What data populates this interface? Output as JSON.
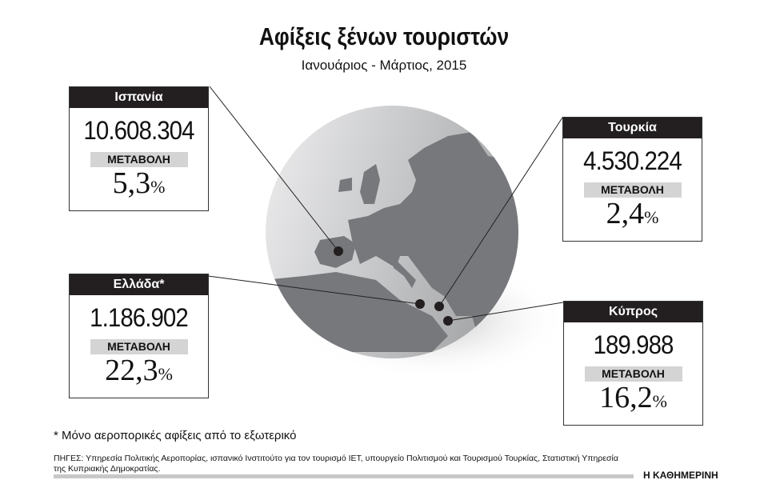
{
  "title": "Αφίξεις ξένων τουριστών",
  "subtitle": "Ιανουάριος - Μάρτιος, 2015",
  "countries": [
    {
      "name": "Ισπανία",
      "arrivals": "10.608.304",
      "change_label": "ΜΕΤΑΒΟΛΗ",
      "change": "5,3",
      "unit": "%"
    },
    {
      "name": "Τουρκία",
      "arrivals": "4.530.224",
      "change_label": "ΜΕΤΑΒΟΛΗ",
      "change": "2,4",
      "unit": "%"
    },
    {
      "name": "Ελλάδα*",
      "arrivals": "1.186.902",
      "change_label": "ΜΕΤΑΒΟΛΗ",
      "change": "22,3",
      "unit": "%"
    },
    {
      "name": "Κύπρος",
      "arrivals": "189.988",
      "change_label": "ΜΕΤΑΒΟΛΗ",
      "change": "16,2",
      "unit": "%"
    }
  ],
  "footnote": "* Μόνο αεροπορικές αφίξεις από το εξωτερικό",
  "sources": "ΠΗΓΕΣ: Υπηρεσία Πολιτικής Αεροπορίας, ισπανικό Ινστιτούτο για τον τουρισμό IET, υπουργείο Πολιτισμού και Τουρισμού Τουρκίας, Στατιστική Υπηρεσία της Κυπριακής Δημοκρατίας.",
  "brand": "Η ΚΑΘΗΜΕΡΙΝΗ",
  "colors": {
    "header": "#231f20",
    "label_bg": "#d4d4d4",
    "land": "#77787b"
  }
}
